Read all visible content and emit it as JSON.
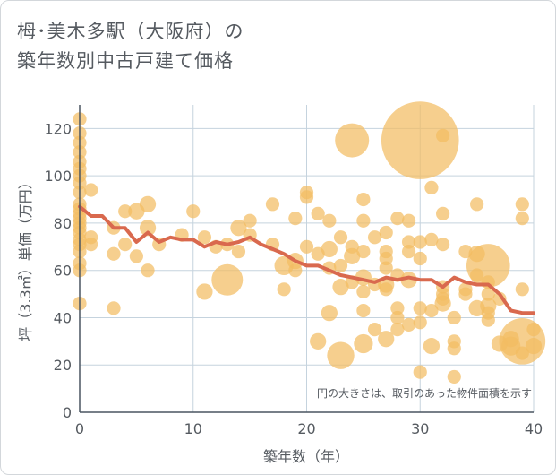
{
  "page": {
    "title_line1": "栂･美木多駅（大阪府）の",
    "title_line2": "築年数別中古戸建て価格"
  },
  "chart_data": {
    "type": "scatter",
    "xlabel": "築年数（年）",
    "ylabel": "坪（3.3㎡）単価（万円）",
    "xlim": [
      0,
      40
    ],
    "ylim": [
      0,
      130
    ],
    "xticks": [
      0,
      10,
      20,
      30,
      40
    ],
    "yticks": [
      0,
      20,
      40,
      60,
      80,
      100,
      120
    ],
    "grid": true,
    "annotation": "円の大きさは、取引のあった物件面積を示す",
    "colors": {
      "points": "#f2bd63",
      "line": "#d9694e",
      "grid": "#c5d3de",
      "text": "#555a60"
    },
    "trend_line": {
      "x": [
        0,
        1,
        2,
        3,
        4,
        5,
        6,
        7,
        8,
        9,
        10,
        11,
        12,
        13,
        14,
        15,
        16,
        17,
        18,
        19,
        20,
        21,
        22,
        23,
        24,
        25,
        26,
        27,
        28,
        29,
        30,
        31,
        32,
        33,
        34,
        35,
        36,
        37,
        38,
        39,
        40
      ],
      "y": [
        87,
        83,
        83,
        78,
        78,
        72,
        76,
        72,
        74,
        73,
        73,
        70,
        72,
        71,
        72,
        74,
        71,
        69,
        67,
        64,
        62,
        62,
        60,
        58,
        57,
        56,
        55,
        57,
        56,
        57,
        56,
        56,
        53,
        57,
        55,
        54,
        54,
        50,
        43,
        42,
        42
      ]
    },
    "points": [
      {
        "x": 0,
        "y": 124,
        "s": 1
      },
      {
        "x": 0,
        "y": 118,
        "s": 1
      },
      {
        "x": 0,
        "y": 114,
        "s": 1
      },
      {
        "x": 0,
        "y": 110,
        "s": 1
      },
      {
        "x": 0,
        "y": 106,
        "s": 1
      },
      {
        "x": 0,
        "y": 103,
        "s": 1
      },
      {
        "x": 0,
        "y": 100,
        "s": 1
      },
      {
        "x": 0,
        "y": 97,
        "s": 1
      },
      {
        "x": 0,
        "y": 93,
        "s": 1
      },
      {
        "x": 0,
        "y": 88,
        "s": 1
      },
      {
        "x": 0,
        "y": 86,
        "s": 1
      },
      {
        "x": 0,
        "y": 84,
        "s": 1
      },
      {
        "x": 0,
        "y": 82,
        "s": 1
      },
      {
        "x": 0,
        "y": 80,
        "s": 1
      },
      {
        "x": 0,
        "y": 78,
        "s": 1
      },
      {
        "x": 0,
        "y": 76,
        "s": 1
      },
      {
        "x": 0,
        "y": 73,
        "s": 1
      },
      {
        "x": 0,
        "y": 71,
        "s": 1
      },
      {
        "x": 0,
        "y": 68,
        "s": 1
      },
      {
        "x": 0,
        "y": 63,
        "s": 1
      },
      {
        "x": 0,
        "y": 60,
        "s": 1
      },
      {
        "x": 0,
        "y": 46,
        "s": 1
      },
      {
        "x": 1,
        "y": 94,
        "s": 1
      },
      {
        "x": 1,
        "y": 74,
        "s": 1
      },
      {
        "x": 1,
        "y": 71,
        "s": 1
      },
      {
        "x": 3,
        "y": 67,
        "s": 1
      },
      {
        "x": 3,
        "y": 44,
        "s": 1
      },
      {
        "x": 3,
        "y": 78,
        "s": 1
      },
      {
        "x": 4,
        "y": 85,
        "s": 1
      },
      {
        "x": 4,
        "y": 71,
        "s": 1
      },
      {
        "x": 5,
        "y": 85,
        "s": 1.2
      },
      {
        "x": 5,
        "y": 66,
        "s": 1
      },
      {
        "x": 6,
        "y": 88,
        "s": 1.2
      },
      {
        "x": 6,
        "y": 78,
        "s": 1.2
      },
      {
        "x": 6,
        "y": 60,
        "s": 1
      },
      {
        "x": 7,
        "y": 71,
        "s": 1
      },
      {
        "x": 9,
        "y": 75,
        "s": 1
      },
      {
        "x": 10,
        "y": 85,
        "s": 1
      },
      {
        "x": 11,
        "y": 74,
        "s": 1
      },
      {
        "x": 11,
        "y": 51,
        "s": 1.2
      },
      {
        "x": 12,
        "y": 70,
        "s": 1
      },
      {
        "x": 13,
        "y": 56,
        "s": 2.3
      },
      {
        "x": 13,
        "y": 71,
        "s": 1
      },
      {
        "x": 14,
        "y": 78,
        "s": 1.2
      },
      {
        "x": 14,
        "y": 68,
        "s": 1
      },
      {
        "x": 15,
        "y": 81,
        "s": 1
      },
      {
        "x": 15,
        "y": 75,
        "s": 1
      },
      {
        "x": 17,
        "y": 88,
        "s": 1
      },
      {
        "x": 17,
        "y": 71,
        "s": 1
      },
      {
        "x": 18,
        "y": 62,
        "s": 1.4
      },
      {
        "x": 18,
        "y": 52,
        "s": 1
      },
      {
        "x": 19,
        "y": 82,
        "s": 1
      },
      {
        "x": 19,
        "y": 64,
        "s": 1.2
      },
      {
        "x": 19,
        "y": 60,
        "s": 1
      },
      {
        "x": 20,
        "y": 93,
        "s": 1
      },
      {
        "x": 20,
        "y": 91,
        "s": 1
      },
      {
        "x": 20,
        "y": 70,
        "s": 1
      },
      {
        "x": 21,
        "y": 84,
        "s": 1
      },
      {
        "x": 21,
        "y": 67,
        "s": 1
      },
      {
        "x": 21,
        "y": 30,
        "s": 1.2
      },
      {
        "x": 22,
        "y": 81,
        "s": 1
      },
      {
        "x": 22,
        "y": 69,
        "s": 1.2
      },
      {
        "x": 22,
        "y": 61,
        "s": 1
      },
      {
        "x": 22,
        "y": 42,
        "s": 1.2
      },
      {
        "x": 23,
        "y": 74,
        "s": 1
      },
      {
        "x": 23,
        "y": 62,
        "s": 1
      },
      {
        "x": 23,
        "y": 53,
        "s": 1.2
      },
      {
        "x": 23,
        "y": 24,
        "s": 2
      },
      {
        "x": 24,
        "y": 115,
        "s": 2.5
      },
      {
        "x": 24,
        "y": 70,
        "s": 1
      },
      {
        "x": 24,
        "y": 66,
        "s": 1.2
      },
      {
        "x": 24,
        "y": 55,
        "s": 1
      },
      {
        "x": 25,
        "y": 90,
        "s": 1
      },
      {
        "x": 25,
        "y": 81,
        "s": 1
      },
      {
        "x": 25,
        "y": 68,
        "s": 1
      },
      {
        "x": 25,
        "y": 57,
        "s": 1.2
      },
      {
        "x": 25,
        "y": 51,
        "s": 1
      },
      {
        "x": 25,
        "y": 43,
        "s": 1
      },
      {
        "x": 25,
        "y": 29,
        "s": 1.4
      },
      {
        "x": 26,
        "y": 74,
        "s": 1
      },
      {
        "x": 26,
        "y": 54,
        "s": 1
      },
      {
        "x": 26,
        "y": 35,
        "s": 1
      },
      {
        "x": 27,
        "y": 76,
        "s": 1
      },
      {
        "x": 27,
        "y": 68,
        "s": 1
      },
      {
        "x": 27,
        "y": 65,
        "s": 1
      },
      {
        "x": 27,
        "y": 61,
        "s": 1
      },
      {
        "x": 27,
        "y": 54,
        "s": 1.2
      },
      {
        "x": 27,
        "y": 52,
        "s": 1
      },
      {
        "x": 27,
        "y": 31,
        "s": 1.2
      },
      {
        "x": 28,
        "y": 82,
        "s": 1
      },
      {
        "x": 28,
        "y": 58,
        "s": 1
      },
      {
        "x": 28,
        "y": 44,
        "s": 1
      },
      {
        "x": 28,
        "y": 40,
        "s": 1
      },
      {
        "x": 28,
        "y": 35,
        "s": 1
      },
      {
        "x": 29,
        "y": 81,
        "s": 1
      },
      {
        "x": 29,
        "y": 72,
        "s": 1
      },
      {
        "x": 29,
        "y": 68,
        "s": 1
      },
      {
        "x": 29,
        "y": 56,
        "s": 1.2
      },
      {
        "x": 29,
        "y": 37,
        "s": 1
      },
      {
        "x": 30,
        "y": 115,
        "s": 5.7
      },
      {
        "x": 30,
        "y": 72,
        "s": 1
      },
      {
        "x": 30,
        "y": 65,
        "s": 1
      },
      {
        "x": 30,
        "y": 44,
        "s": 1
      },
      {
        "x": 30,
        "y": 38,
        "s": 1
      },
      {
        "x": 30,
        "y": 17,
        "s": 1
      },
      {
        "x": 31,
        "y": 95,
        "s": 1
      },
      {
        "x": 31,
        "y": 73,
        "s": 1
      },
      {
        "x": 31,
        "y": 43,
        "s": 1
      },
      {
        "x": 31,
        "y": 28,
        "s": 1.2
      },
      {
        "x": 32,
        "y": 117,
        "s": 1
      },
      {
        "x": 32,
        "y": 84,
        "s": 1
      },
      {
        "x": 32,
        "y": 71,
        "s": 1
      },
      {
        "x": 32,
        "y": 53,
        "s": 1
      },
      {
        "x": 32,
        "y": 50,
        "s": 1
      },
      {
        "x": 32,
        "y": 48,
        "s": 1
      },
      {
        "x": 32,
        "y": 46,
        "s": 1.2
      },
      {
        "x": 33,
        "y": 40,
        "s": 1
      },
      {
        "x": 33,
        "y": 30,
        "s": 1
      },
      {
        "x": 33,
        "y": 27,
        "s": 1
      },
      {
        "x": 33,
        "y": 15,
        "s": 1
      },
      {
        "x": 34,
        "y": 68,
        "s": 1
      },
      {
        "x": 34,
        "y": 52,
        "s": 1
      },
      {
        "x": 34,
        "y": 50,
        "s": 1
      },
      {
        "x": 35,
        "y": 88,
        "s": 1
      },
      {
        "x": 35,
        "y": 67,
        "s": 1.2
      },
      {
        "x": 35,
        "y": 58,
        "s": 1
      },
      {
        "x": 35,
        "y": 44,
        "s": 1.2
      },
      {
        "x": 36,
        "y": 62,
        "s": 3.2
      },
      {
        "x": 36,
        "y": 55,
        "s": 1
      },
      {
        "x": 36,
        "y": 50,
        "s": 1
      },
      {
        "x": 36,
        "y": 45,
        "s": 1.2
      },
      {
        "x": 36,
        "y": 42,
        "s": 1
      },
      {
        "x": 36,
        "y": 39,
        "s": 1
      },
      {
        "x": 37,
        "y": 48,
        "s": 1
      },
      {
        "x": 37,
        "y": 29,
        "s": 1.2
      },
      {
        "x": 38,
        "y": 31,
        "s": 1.2
      },
      {
        "x": 38,
        "y": 28,
        "s": 1.4
      },
      {
        "x": 39,
        "y": 88,
        "s": 1
      },
      {
        "x": 39,
        "y": 82,
        "s": 1
      },
      {
        "x": 39,
        "y": 52,
        "s": 1
      },
      {
        "x": 39,
        "y": 30,
        "s": 3.4
      },
      {
        "x": 39,
        "y": 25,
        "s": 1
      },
      {
        "x": 40,
        "y": 35,
        "s": 1
      },
      {
        "x": 40,
        "y": 28,
        "s": 1.2
      }
    ]
  }
}
